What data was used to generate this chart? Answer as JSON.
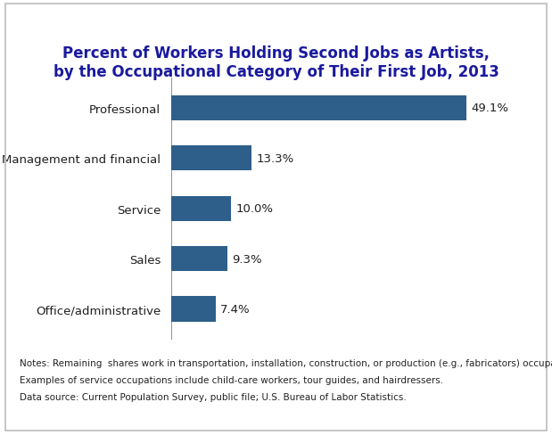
{
  "title": "Percent of Workers Holding Second Jobs as Artists,\nby the Occupational Category of Their First Job, 2013",
  "categories": [
    "Office/administrative",
    "Sales",
    "Service",
    "Management and financial",
    "Professional"
  ],
  "values": [
    7.4,
    9.3,
    10.0,
    13.3,
    49.1
  ],
  "labels": [
    "7.4%",
    "9.3%",
    "10.0%",
    "13.3%",
    "49.1%"
  ],
  "bar_color": "#2E5F8A",
  "title_color": "#1A1A9E",
  "label_color": "#1F1F1F",
  "notes_line1": "Notes: Remaining  shares work in transportation, installation, construction, or production (e.g., fabricators) occupations.",
  "notes_line2": "Examples of service occupations include child-care workers, tour guides, and hairdressers.",
  "notes_line3": "Data source: Current Population Survey, public file; U.S. Bureau of Labor Statistics.",
  "xlim": [
    0,
    55
  ],
  "figsize": [
    6.19,
    4.89
  ],
  "dpi": 100,
  "background_color": "#FFFFFF",
  "border_color": "#AAAAAA",
  "bar_height": 0.5,
  "title_fontsize": 12,
  "label_fontsize": 9.5,
  "ytick_fontsize": 9.5,
  "notes_fontsize": 7.5
}
